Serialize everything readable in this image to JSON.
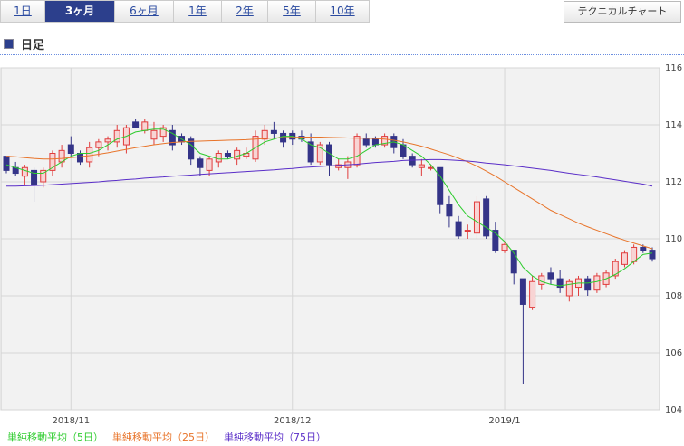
{
  "ui": {
    "tabs": [
      "1日",
      "3ヶ月",
      "6ヶ月",
      "1年",
      "2年",
      "5年",
      "10年"
    ],
    "selected_tab": 1,
    "button": "テクニカルチャート",
    "section_title": "日足"
  },
  "chart_data": {
    "type": "candlestick",
    "categories": [
      null,
      null,
      null,
      null,
      null,
      null,
      null,
      "2018/11",
      null,
      null,
      null,
      null,
      null,
      null,
      null,
      null,
      null,
      null,
      null,
      null,
      null,
      null,
      null,
      null,
      null,
      null,
      null,
      null,
      null,
      null,
      null,
      "2018/12",
      null,
      null,
      null,
      null,
      null,
      null,
      null,
      null,
      null,
      null,
      null,
      null,
      null,
      null,
      null,
      null,
      null,
      null,
      null,
      null,
      null,
      null,
      "2019/1",
      null,
      null,
      null,
      null,
      null,
      null,
      null,
      null,
      null,
      null,
      null,
      null,
      null,
      null,
      null,
      null
    ],
    "open": [
      112.9,
      112.5,
      112.2,
      112.4,
      112.0,
      112.4,
      112.7,
      113.3,
      113.0,
      112.7,
      113.2,
      113.4,
      113.4,
      113.3,
      114.1,
      113.8,
      113.5,
      113.6,
      113.8,
      113.6,
      113.5,
      112.8,
      112.4,
      112.7,
      113.0,
      112.8,
      112.9,
      112.8,
      113.5,
      113.8,
      113.7,
      113.7,
      113.6,
      113.4,
      112.7,
      113.3,
      112.5,
      112.5,
      112.6,
      113.5,
      113.5,
      113.3,
      113.6,
      113.3,
      112.9,
      112.5,
      112.5,
      112.5,
      111.2,
      110.6,
      110.3,
      110.2,
      111.4,
      110.3,
      109.6,
      109.6,
      108.6,
      107.6,
      108.4,
      108.8,
      108.6,
      108.0,
      108.3,
      108.6,
      108.2,
      108.4,
      108.7,
      109.1,
      109.2,
      109.7,
      109.6
    ],
    "high": [
      112.9,
      112.7,
      112.6,
      112.5,
      112.5,
      113.1,
      113.3,
      113.6,
      113.1,
      113.4,
      113.5,
      113.6,
      114.0,
      114.0,
      114.2,
      114.2,
      114.1,
      114.0,
      114.0,
      113.7,
      113.6,
      112.9,
      112.9,
      113.1,
      113.1,
      113.2,
      113.2,
      113.8,
      114.0,
      114.1,
      113.8,
      113.8,
      113.8,
      113.7,
      113.4,
      113.4,
      112.8,
      112.9,
      113.7,
      113.7,
      113.6,
      113.7,
      113.7,
      113.5,
      113.0,
      112.8,
      112.6,
      112.5,
      111.5,
      110.8,
      110.5,
      111.5,
      111.5,
      110.6,
      109.9,
      109.6,
      108.6,
      108.7,
      108.8,
      109.0,
      108.9,
      108.6,
      108.7,
      108.7,
      108.8,
      108.9,
      109.3,
      109.6,
      109.8,
      109.8,
      109.7
    ],
    "low": [
      112.3,
      112.2,
      111.9,
      111.3,
      111.8,
      112.2,
      112.5,
      112.9,
      112.6,
      112.5,
      112.9,
      113.1,
      113.2,
      113.0,
      113.9,
      113.7,
      113.3,
      113.4,
      113.1,
      113.3,
      112.6,
      112.2,
      112.2,
      112.5,
      112.8,
      112.6,
      112.8,
      112.7,
      113.3,
      113.5,
      113.2,
      113.3,
      113.4,
      112.6,
      112.6,
      112.2,
      112.4,
      112.1,
      112.5,
      113.2,
      113.2,
      113.2,
      113.0,
      112.8,
      112.5,
      112.2,
      112.4,
      110.9,
      110.4,
      110.0,
      110.0,
      110.0,
      110.0,
      109.5,
      109.5,
      108.4,
      104.9,
      107.5,
      108.2,
      108.4,
      108.1,
      107.8,
      108.0,
      108.0,
      108.1,
      108.3,
      108.6,
      109.0,
      109.1,
      109.5,
      109.2
    ],
    "close": [
      112.4,
      112.3,
      112.5,
      111.9,
      112.4,
      113.0,
      113.1,
      113.0,
      112.7,
      113.2,
      113.4,
      113.5,
      113.8,
      113.9,
      113.9,
      114.1,
      113.8,
      113.9,
      113.3,
      113.4,
      112.8,
      112.5,
      112.8,
      113.0,
      112.9,
      113.1,
      113.0,
      113.6,
      113.8,
      113.7,
      113.4,
      113.5,
      113.5,
      112.7,
      113.3,
      112.6,
      112.6,
      112.7,
      113.6,
      113.3,
      113.3,
      113.6,
      113.2,
      112.9,
      112.6,
      112.6,
      112.5,
      111.2,
      110.8,
      110.1,
      110.3,
      111.3,
      110.1,
      109.6,
      109.8,
      108.8,
      107.7,
      108.5,
      108.7,
      108.6,
      108.3,
      108.5,
      108.6,
      108.2,
      108.7,
      108.8,
      109.2,
      109.5,
      109.7,
      109.6,
      109.3
    ],
    "up_color": "#e03c3c",
    "down_color": "#343488",
    "series": [
      {
        "name": "単純移動平均（5日）",
        "color": "#2ecc2e",
        "values": [
          112.6,
          112.5,
          112.4,
          112.3,
          112.3,
          112.5,
          112.7,
          112.9,
          113.0,
          113.0,
          113.1,
          113.3,
          113.5,
          113.6,
          113.75,
          113.8,
          113.85,
          113.85,
          113.7,
          113.5,
          113.3,
          113.0,
          112.9,
          112.8,
          112.8,
          112.9,
          113.0,
          113.2,
          113.4,
          113.5,
          113.6,
          113.6,
          113.5,
          113.3,
          113.2,
          113.0,
          112.8,
          112.8,
          112.9,
          113.1,
          113.3,
          113.35,
          113.4,
          113.3,
          113.1,
          112.9,
          112.6,
          112.2,
          111.7,
          111.2,
          110.8,
          110.6,
          110.4,
          110.2,
          109.9,
          109.5,
          109.0,
          108.7,
          108.5,
          108.4,
          108.35,
          108.4,
          108.45,
          108.45,
          108.5,
          108.6,
          108.75,
          108.95,
          109.2,
          109.45,
          109.5
        ]
      },
      {
        "name": "単純移動平均（25日）",
        "color": "#e8742a",
        "values": [
          112.9,
          112.88,
          112.85,
          112.82,
          112.8,
          112.8,
          112.82,
          112.85,
          112.88,
          112.92,
          112.97,
          113.02,
          113.08,
          113.14,
          113.2,
          113.25,
          113.3,
          113.34,
          113.38,
          113.4,
          113.42,
          113.43,
          113.44,
          113.45,
          113.46,
          113.47,
          113.48,
          113.5,
          113.52,
          113.54,
          113.55,
          113.56,
          113.57,
          113.57,
          113.57,
          113.56,
          113.55,
          113.54,
          113.53,
          113.53,
          113.52,
          113.5,
          113.46,
          113.4,
          113.33,
          113.25,
          113.15,
          113.05,
          112.95,
          112.83,
          112.7,
          112.55,
          112.38,
          112.2,
          112.0,
          111.8,
          111.6,
          111.4,
          111.2,
          111.0,
          110.85,
          110.7,
          110.55,
          110.42,
          110.3,
          110.18,
          110.06,
          109.95,
          109.85,
          109.75,
          109.65
        ]
      },
      {
        "name": "単純移動平均（75日）",
        "color": "#5a2ec8",
        "values": [
          111.85,
          111.85,
          111.86,
          111.87,
          111.88,
          111.9,
          111.92,
          111.94,
          111.96,
          111.98,
          112.0,
          112.03,
          112.05,
          112.08,
          112.1,
          112.13,
          112.15,
          112.17,
          112.2,
          112.22,
          112.24,
          112.26,
          112.28,
          112.3,
          112.32,
          112.34,
          112.36,
          112.38,
          112.4,
          112.42,
          112.45,
          112.47,
          112.5,
          112.52,
          112.54,
          112.56,
          112.58,
          112.6,
          112.62,
          112.65,
          112.68,
          112.7,
          112.72,
          112.75,
          112.76,
          112.77,
          112.78,
          112.78,
          112.77,
          112.75,
          112.73,
          112.7,
          112.66,
          112.63,
          112.6,
          112.56,
          112.52,
          112.48,
          112.44,
          112.4,
          112.35,
          112.3,
          112.26,
          112.22,
          112.17,
          112.12,
          112.07,
          112.02,
          111.97,
          111.92,
          111.85
        ]
      }
    ],
    "ylim": [
      104,
      116
    ],
    "yticks": [
      104,
      106,
      108,
      110,
      112,
      114,
      116
    ],
    "grid": true
  }
}
